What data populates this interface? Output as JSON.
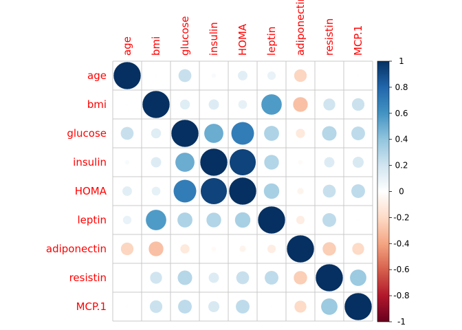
{
  "chart_data": {
    "type": "heatmap",
    "subtype": "correlation-circle-plot",
    "variables": [
      "age",
      "bmi",
      "glucose",
      "insulin",
      "HOMA",
      "leptin",
      "adiponectin",
      "resistin",
      "MCP.1"
    ],
    "matrix": [
      [
        1.0,
        0.01,
        0.23,
        0.03,
        0.13,
        0.1,
        -0.22,
        0.0,
        0.01
      ],
      [
        0.01,
        1.0,
        0.14,
        0.15,
        0.11,
        0.57,
        -0.3,
        0.2,
        0.22
      ],
      [
        0.23,
        0.14,
        1.0,
        0.5,
        0.7,
        0.31,
        -0.12,
        0.29,
        0.26
      ],
      [
        0.03,
        0.15,
        0.5,
        1.0,
        0.93,
        0.3,
        -0.03,
        0.15,
        0.17
      ],
      [
        0.13,
        0.11,
        0.7,
        0.93,
        1.0,
        0.33,
        -0.06,
        0.23,
        0.26
      ],
      [
        0.1,
        0.57,
        0.31,
        0.3,
        0.33,
        1.0,
        -0.1,
        0.26,
        0.01
      ],
      [
        -0.22,
        -0.3,
        -0.12,
        -0.03,
        -0.06,
        -0.1,
        1.0,
        -0.25,
        -0.2
      ],
      [
        0.0,
        0.2,
        0.29,
        0.15,
        0.23,
        0.26,
        -0.25,
        1.0,
        0.37
      ],
      [
        0.01,
        0.22,
        0.26,
        0.17,
        0.26,
        0.01,
        -0.2,
        0.37,
        1.0
      ]
    ],
    "colorbar": {
      "range": [
        -1,
        1
      ],
      "ticks": [
        "1",
        "0.8",
        "0.6",
        "0.4",
        "0.2",
        "0",
        "-0.2",
        "-0.4",
        "-0.6",
        "-0.8",
        "-1"
      ],
      "stops": [
        "#67001F",
        "#B2182B",
        "#D6604D",
        "#F4A582",
        "#FDDBC7",
        "#FFFFFF",
        "#D1E5F0",
        "#92C5DE",
        "#4393C3",
        "#2166AC",
        "#053061"
      ]
    },
    "label_color": "#ff0000",
    "grid_color": "#c8c8c8",
    "grid": true,
    "legend": "right"
  }
}
